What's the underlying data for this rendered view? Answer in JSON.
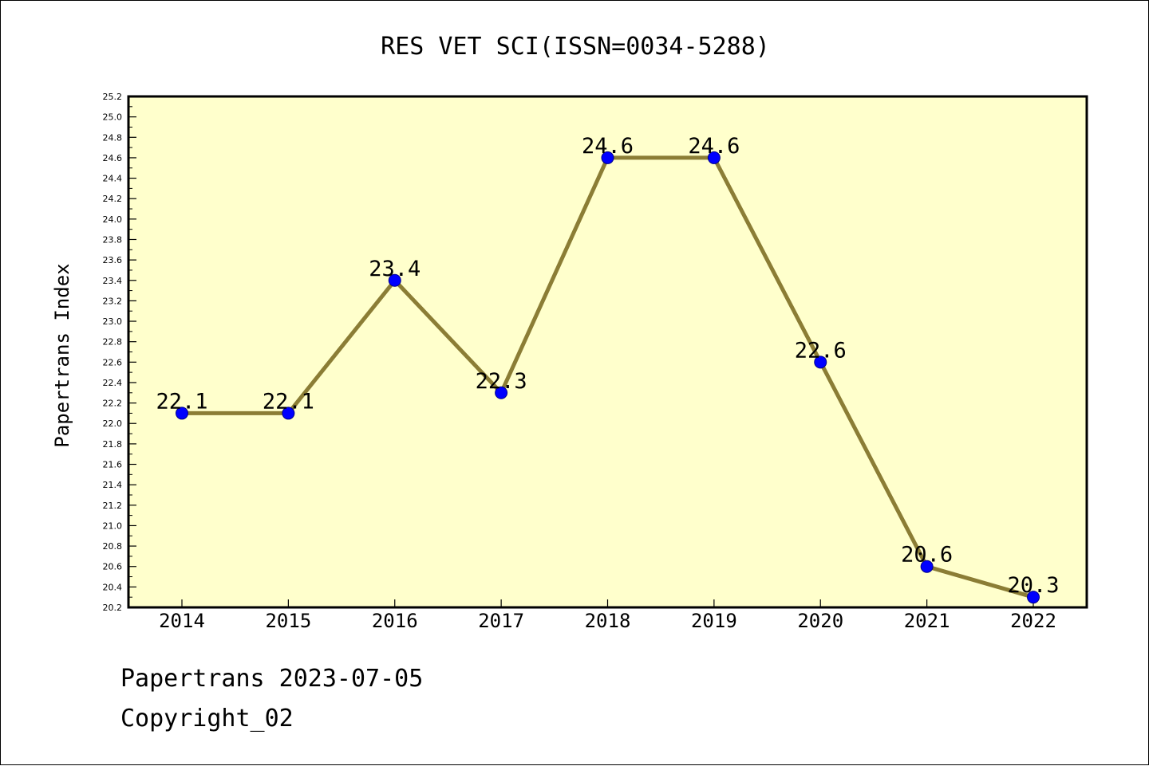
{
  "chart_data": {
    "type": "line",
    "title": "RES VET SCI(ISSN=0034-5288)",
    "xlabel": "",
    "ylabel": "Papertrans Index",
    "categories": [
      "2014",
      "2015",
      "2016",
      "2017",
      "2018",
      "2019",
      "2020",
      "2021",
      "2022"
    ],
    "series": [
      {
        "values": [
          22.1,
          22.1,
          23.4,
          22.3,
          24.6,
          24.6,
          22.6,
          20.6,
          20.3
        ],
        "data_labels": [
          "22.1",
          "22.1",
          "23.4",
          "22.3",
          "24.6",
          "24.6",
          "22.6",
          "20.6",
          "20.3"
        ]
      }
    ],
    "ylim": [
      20.2,
      25.2
    ],
    "ytick_labels": [
      "20.2",
      "20.4",
      "20.6",
      "20.8",
      "21.0",
      "21.2",
      "21.4",
      "21.6",
      "21.8",
      "22.0",
      "22.2",
      "22.4",
      "22.6",
      "22.8",
      "23.0",
      "23.2",
      "23.4",
      "23.6",
      "23.8",
      "24.0",
      "24.2",
      "24.4",
      "24.6",
      "24.8",
      "25.0",
      "25.2"
    ],
    "grid": false,
    "colors": {
      "plot_background": "#ffffcc",
      "line": "#8b7d35",
      "marker": "#0000ff"
    }
  },
  "footer": {
    "line1": "Papertrans 2023-07-05",
    "line2": "Copyright_02"
  }
}
